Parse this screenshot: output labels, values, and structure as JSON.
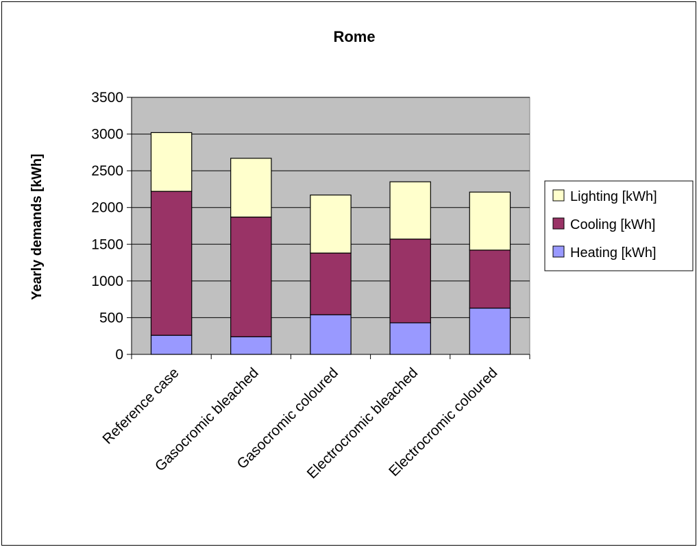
{
  "chart_data": {
    "type": "bar",
    "stacked": true,
    "title": "Rome",
    "xlabel": "",
    "ylabel": "Yearly demands [kWh]",
    "ylim": [
      0,
      3500
    ],
    "yticks": [
      0,
      500,
      1000,
      1500,
      2000,
      2500,
      3000,
      3500
    ],
    "grid": true,
    "legend_position": "right",
    "categories": [
      "Reference case",
      "Gasocromic bleached",
      "Gasocromic coloured",
      "Electrocromic bleached",
      "Electrocromic coloured"
    ],
    "series": [
      {
        "name": "Heating [kWh]",
        "color": "#9999FF",
        "values": [
          260,
          240,
          540,
          430,
          630
        ]
      },
      {
        "name": "Cooling [kWh]",
        "color": "#993366",
        "values": [
          1960,
          1630,
          840,
          1140,
          790
        ]
      },
      {
        "name": "Lighting [kWh]",
        "color": "#FFFFCC",
        "values": [
          800,
          800,
          790,
          780,
          790
        ]
      }
    ],
    "plot_background": "#C0C0C0"
  }
}
